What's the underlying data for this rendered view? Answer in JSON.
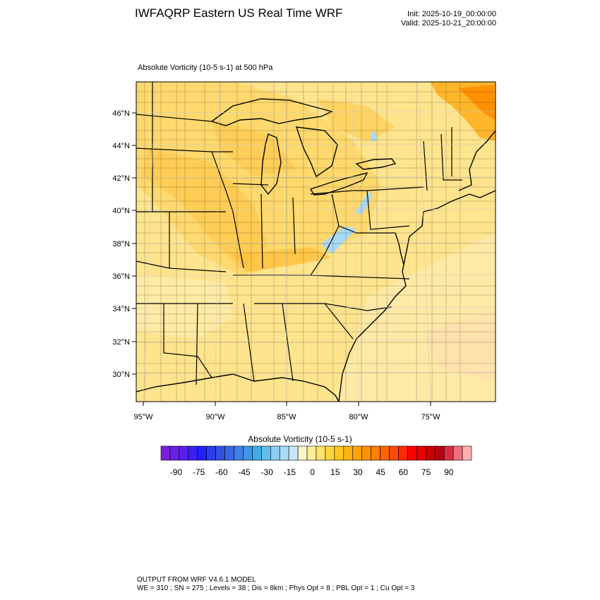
{
  "header": {
    "title": "IWFAQRP Eastern US Real Time WRF",
    "init": "Init: 2025-10-19_00:00:00",
    "valid": "Valid: 2025-10-21_20:00:00"
  },
  "field_label": "Absolute Vorticity   (10-5 s-1)     at   500 hPa",
  "lat_labels": [
    "46°N",
    "44°N",
    "42°N",
    "40°N",
    "38°N",
    "36°N",
    "34°N",
    "32°N",
    "30°N"
  ],
  "lon_labels": [
    "95°W",
    "90°W",
    "85°W",
    "80°W",
    "75°W"
  ],
  "colorbar": {
    "title": "Absolute Vorticity  (10-5 s-1)",
    "tick_labels": [
      "-90",
      "-75",
      "-60",
      "-45",
      "-30",
      "-15",
      "0",
      "15",
      "30",
      "45",
      "60",
      "75",
      "90"
    ],
    "colors": [
      "#7a1fe0",
      "#6a1fe6",
      "#5a1ff0",
      "#3a1ff5",
      "#2020ff",
      "#2a3fe6",
      "#3050e0",
      "#3a66e6",
      "#3f7fe6",
      "#3f95e6",
      "#3faae6",
      "#5fbef0",
      "#8ecdef",
      "#a8daf5",
      "#c8e8fa",
      "#fff7c8",
      "#ffee99",
      "#ffe36b",
      "#ffd53f",
      "#ffc61f",
      "#ffb510",
      "#ffa30a",
      "#ff9000",
      "#ff7d00",
      "#ff6400",
      "#ff4b00",
      "#ff2a00",
      "#ff0000",
      "#e60000",
      "#c80000",
      "#b80010",
      "#d63040",
      "#f07080",
      "#ffb0b0"
    ]
  },
  "footer": {
    "line1": "OUTPUT FROM WRF V4.6.1 MODEL",
    "line2": "WE = 310 ; SN = 275 ; Levels = 38 ; Dis = 8km ; Phys Opt = 8 ; PBL Opt = 1 ; Cu Opt = 3"
  }
}
